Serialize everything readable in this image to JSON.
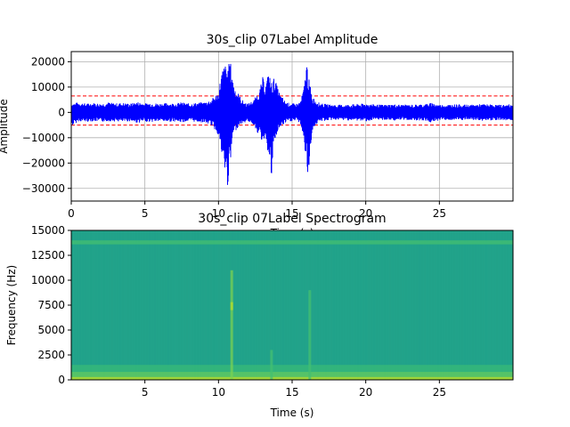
{
  "colors": {
    "signal": "#0000ff",
    "threshold": "#ff0000",
    "grid": "#b0b0b0",
    "axes": "#000000"
  },
  "chart_data": [
    {
      "type": "line",
      "title": "30s_clip  07Label Amplitude",
      "xlabel": "Time (s)",
      "ylabel": "Amplitude",
      "xlim": [
        0,
        30
      ],
      "ylim": [
        -35000,
        24000
      ],
      "grid": true,
      "xticks": [
        0,
        5,
        10,
        15,
        20,
        25
      ],
      "xtick_labels": [
        "0",
        "5",
        "10",
        "15",
        "20",
        "25"
      ],
      "yticks": [
        20000,
        10000,
        0,
        -10000,
        -20000,
        -30000
      ],
      "ytick_labels": [
        "20000",
        "10000",
        "0",
        "−10000",
        "−20000",
        "−30000"
      ],
      "thresholds": [
        6500,
        -5000
      ],
      "series": [
        {
          "x": [
            0,
            0.5,
            1.0,
            1.5,
            2.0,
            2.5,
            3.0,
            3.5,
            4.0,
            4.5,
            5.0,
            5.5,
            6.0,
            6.5,
            7.0,
            7.5,
            8.0,
            8.5,
            9.0,
            9.5,
            10.0,
            10.2,
            10.4,
            10.6,
            10.8,
            10.9,
            11.0,
            11.2,
            11.4,
            11.6,
            11.8,
            12.0,
            12.4,
            12.8,
            13.0,
            13.2,
            13.4,
            13.6,
            13.8,
            14.0,
            14.2,
            14.6,
            15.0,
            15.4,
            15.6,
            15.8,
            16.0,
            16.1,
            16.2,
            16.3,
            16.4,
            16.6,
            16.8,
            17.0,
            17.5,
            18.0,
            19.0,
            20.0,
            21.0,
            22.0,
            23.0,
            24.0,
            24.5,
            25.0,
            26.0,
            27.0,
            28.0,
            29.0,
            30.0
          ],
          "max": [
            3500,
            4000,
            3500,
            3800,
            3500,
            4000,
            3600,
            3800,
            3500,
            4200,
            3600,
            3800,
            3500,
            3700,
            3600,
            4000,
            3500,
            3800,
            4000,
            5000,
            8000,
            16000,
            19000,
            18000,
            20500,
            17000,
            12000,
            9000,
            7000,
            5000,
            4000,
            3500,
            5000,
            9000,
            14000,
            11000,
            16000,
            12000,
            14000,
            10000,
            7000,
            4000,
            3500,
            3500,
            5000,
            10000,
            20500,
            14000,
            12000,
            8000,
            6000,
            5000,
            4000,
            3500,
            3200,
            3000,
            3200,
            3500,
            3000,
            3200,
            3000,
            3300,
            3800,
            3000,
            3200,
            3000,
            3300,
            3000,
            3200
          ],
          "min": [
            -5500,
            -3500,
            -3800,
            -3500,
            -3800,
            -3500,
            -3600,
            -3800,
            -3500,
            -4200,
            -3600,
            -3800,
            -3500,
            -3700,
            -3600,
            -4000,
            -3500,
            -3800,
            -4000,
            -5000,
            -9000,
            -17000,
            -23000,
            -30000,
            -22000,
            -14000,
            -9000,
            -7000,
            -5000,
            -4500,
            -4000,
            -3500,
            -5000,
            -10000,
            -12000,
            -9000,
            -18000,
            -27000,
            -12000,
            -8000,
            -6000,
            -4000,
            -3500,
            -3500,
            -5000,
            -12000,
            -21000,
            -33000,
            -16000,
            -11000,
            -7000,
            -5000,
            -4000,
            -3500,
            -3200,
            -3000,
            -3200,
            -3500,
            -3000,
            -3200,
            -3000,
            -3300,
            -4200,
            -3000,
            -3200,
            -3000,
            -3300,
            -3000,
            -3200
          ]
        }
      ]
    },
    {
      "type": "heatmap",
      "title": "30s_clip  07Label Spectrogram",
      "xlabel": "Time (s)",
      "ylabel": "Frequency (Hz)",
      "xlim": [
        0,
        30
      ],
      "ylim": [
        0,
        15000
      ],
      "grid": false,
      "xticks": [
        5,
        10,
        15,
        20,
        25
      ],
      "xtick_labels": [
        "5",
        "10",
        "15",
        "20",
        "25"
      ],
      "yticks": [
        0,
        2500,
        5000,
        7500,
        10000,
        12500,
        15000
      ],
      "ytick_labels": [
        "0",
        "2500",
        "5000",
        "7500",
        "10000",
        "12500",
        "15000"
      ],
      "colormap": "viridis",
      "base_color": "#21a38a",
      "bands": [
        {
          "fmin": 0,
          "fmax": 300,
          "color": "#b5de2b"
        },
        {
          "fmin": 300,
          "fmax": 800,
          "color": "#5ec962"
        },
        {
          "fmin": 800,
          "fmax": 1500,
          "color": "#35b779"
        },
        {
          "fmin": 13600,
          "fmax": 14000,
          "color": "#3fbc73"
        }
      ],
      "events": [
        {
          "t": 10.9,
          "fmin": 0,
          "fmax": 11000,
          "color": "#7ad151"
        },
        {
          "t": 10.9,
          "fmin": 7000,
          "fmax": 7800,
          "color": "#b5de2b"
        },
        {
          "t": 16.2,
          "fmin": 0,
          "fmax": 9000,
          "color": "#44bf70"
        },
        {
          "t": 13.6,
          "fmin": 0,
          "fmax": 3000,
          "color": "#44bf70"
        }
      ]
    }
  ]
}
